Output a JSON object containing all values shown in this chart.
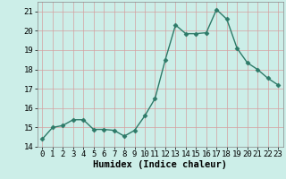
{
  "x": [
    0,
    1,
    2,
    3,
    4,
    5,
    6,
    7,
    8,
    9,
    10,
    11,
    12,
    13,
    14,
    15,
    16,
    17,
    18,
    19,
    20,
    21,
    22,
    23
  ],
  "y": [
    14.4,
    15.0,
    15.1,
    15.4,
    15.4,
    14.9,
    14.9,
    14.85,
    14.55,
    14.85,
    15.6,
    16.5,
    18.5,
    20.3,
    19.85,
    19.85,
    19.9,
    21.1,
    20.6,
    19.1,
    18.35,
    18.0,
    17.55,
    17.2
  ],
  "line_color": "#2d7a68",
  "marker": "D",
  "marker_size": 2.5,
  "bg_color": "#cceee8",
  "grid_color": "#d4a0a0",
  "xlabel": "Humidex (Indice chaleur)",
  "ylim": [
    14,
    21.5
  ],
  "xlim": [
    -0.5,
    23.5
  ],
  "yticks": [
    14,
    15,
    16,
    17,
    18,
    19,
    20,
    21
  ],
  "xticks": [
    0,
    1,
    2,
    3,
    4,
    5,
    6,
    7,
    8,
    9,
    10,
    11,
    12,
    13,
    14,
    15,
    16,
    17,
    18,
    19,
    20,
    21,
    22,
    23
  ],
  "xlabel_fontsize": 7.5,
  "tick_fontsize": 6.5,
  "line_width": 1.0
}
